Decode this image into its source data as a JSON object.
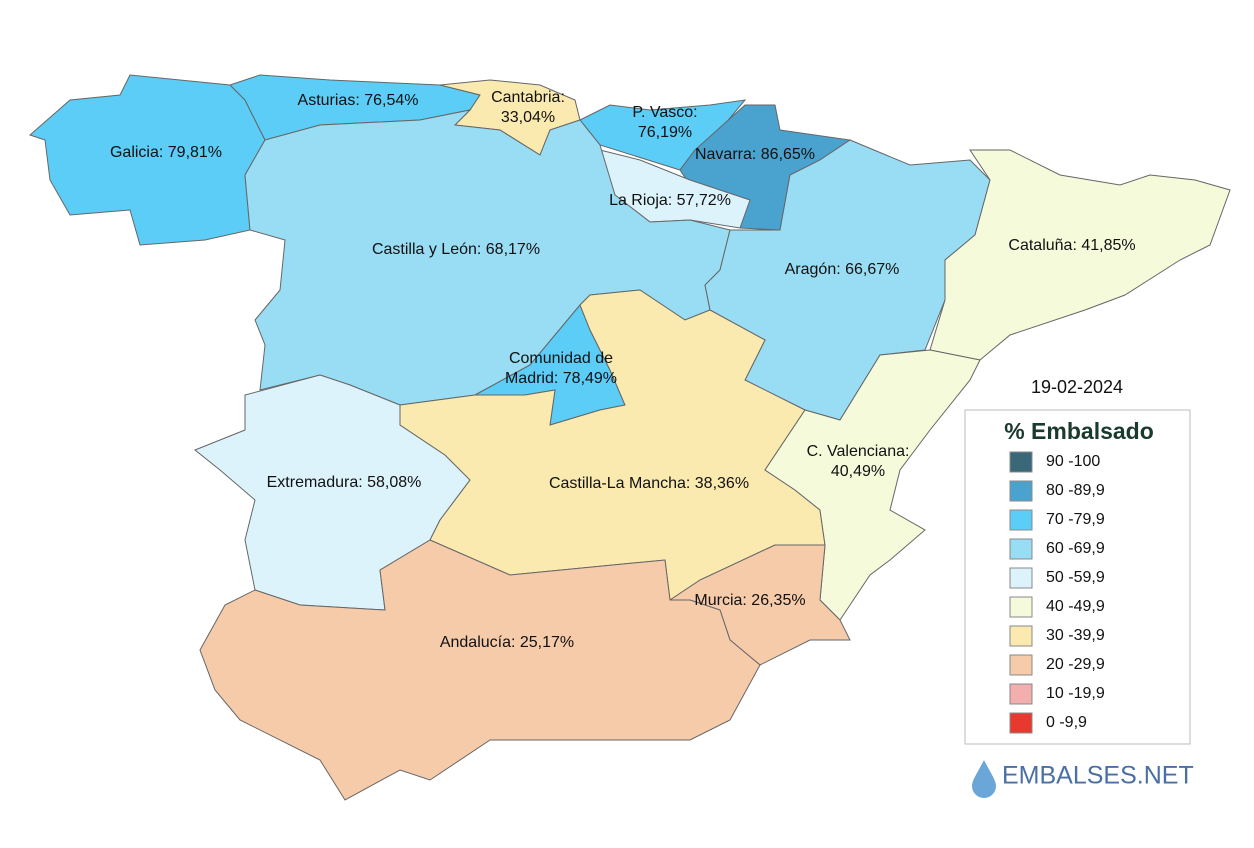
{
  "date": "19-02-2024",
  "regions": [
    {
      "label": [
        "Galicia: 79,81%"
      ],
      "color": "#5ccdf6"
    },
    {
      "label": [
        "Asturias: 76,54%"
      ],
      "color": "#5ccdf6"
    },
    {
      "label": [
        "Cantabria:",
        "33,04%"
      ],
      "color": "#faeab0"
    },
    {
      "label": [
        "P. Vasco:",
        "76,19%"
      ],
      "color": "#5ccdf6"
    },
    {
      "label": [
        "Navarra: 86,65%"
      ],
      "color": "#4aa3cf"
    },
    {
      "label": [
        "La Rioja: 57,72%"
      ],
      "color": "#dcf3fb"
    },
    {
      "label": [
        "Castilla y León: 68,17%"
      ],
      "color": "#99ddf4"
    },
    {
      "label": [
        "Aragón: 66,67%"
      ],
      "color": "#99ddf4"
    },
    {
      "label": [
        "Cataluña: 41,85%"
      ],
      "color": "#f5fadb"
    },
    {
      "label": [
        "Comunidad de",
        "Madrid: 78,49%"
      ],
      "color": "#5ccdf6"
    },
    {
      "label": [
        "Extremadura: 58,08%"
      ],
      "color": "#dcf3fb"
    },
    {
      "label": [
        "Castilla-La Mancha: 38,36%"
      ],
      "color": "#faeab0"
    },
    {
      "label": [
        "C. Valenciana:",
        "40,49%"
      ],
      "color": "#f5fadb"
    },
    {
      "label": [
        "Murcia: 26,35%"
      ],
      "color": "#f6cbaa"
    },
    {
      "label": [
        "Andalucía: 25,17%"
      ],
      "color": "#f6cbaa"
    }
  ],
  "legend": {
    "title": "% Embalsado",
    "entries": [
      {
        "label": "90 -100",
        "color": "#3a6878"
      },
      {
        "label": "80 -89,9",
        "color": "#4aa3cf"
      },
      {
        "label": "70 -79,9",
        "color": "#5ccdf6"
      },
      {
        "label": "60 -69,9",
        "color": "#99ddf4"
      },
      {
        "label": "50 -59,9",
        "color": "#dcf3fb"
      },
      {
        "label": "40 -49,9",
        "color": "#f5fadb"
      },
      {
        "label": "30 -39,9",
        "color": "#faeab0"
      },
      {
        "label": "20 -29,9",
        "color": "#f6cbaa"
      },
      {
        "label": "10 -19,9",
        "color": "#f3aeae"
      },
      {
        "label": "0 -9,9",
        "color": "#e8392e"
      }
    ]
  },
  "logo": "EMBALSES.NET"
}
